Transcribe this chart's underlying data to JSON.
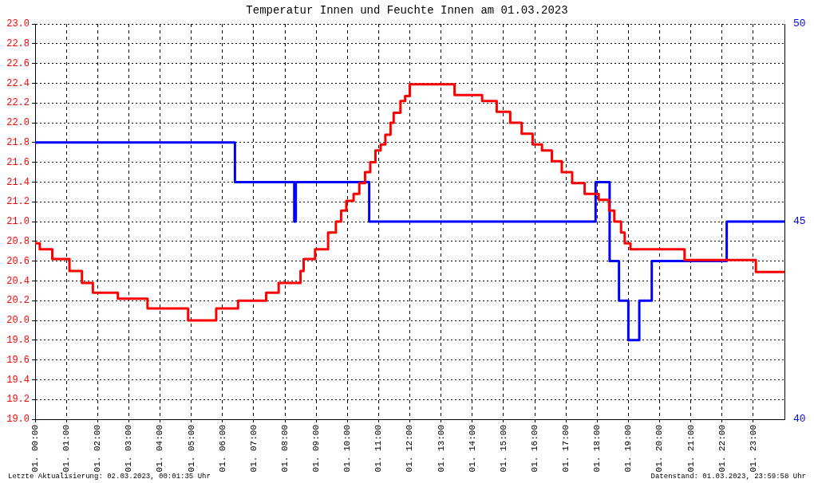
{
  "chart_data": {
    "type": "step",
    "title": "Temperatur Innen und Feuchte Innen am 01.03.2023",
    "xlim": [
      "2023-03-01T00:00",
      "2023-03-02T00:00"
    ],
    "xticks": [
      {
        "value": "2023-03-01T00:00",
        "label": "01. 00:00"
      },
      {
        "value": "2023-03-01T01:00",
        "label": "01. 01:00"
      },
      {
        "value": "2023-03-01T02:00",
        "label": "01. 02:00"
      },
      {
        "value": "2023-03-01T03:00",
        "label": "01. 03:00"
      },
      {
        "value": "2023-03-01T04:00",
        "label": "01. 04:00"
      },
      {
        "value": "2023-03-01T05:00",
        "label": "01. 05:00"
      },
      {
        "value": "2023-03-01T06:00",
        "label": "01. 06:00"
      },
      {
        "value": "2023-03-01T07:00",
        "label": "01. 07:00"
      },
      {
        "value": "2023-03-01T08:00",
        "label": "01. 08:00"
      },
      {
        "value": "2023-03-01T09:00",
        "label": "01. 09:00"
      },
      {
        "value": "2023-03-01T10:00",
        "label": "01. 10:00"
      },
      {
        "value": "2023-03-01T11:00",
        "label": "01. 11:00"
      },
      {
        "value": "2023-03-01T12:00",
        "label": "01. 12:00"
      },
      {
        "value": "2023-03-01T13:00",
        "label": "01. 13:00"
      },
      {
        "value": "2023-03-01T14:00",
        "label": "01. 14:00"
      },
      {
        "value": "2023-03-01T15:00",
        "label": "01. 15:00"
      },
      {
        "value": "2023-03-01T16:00",
        "label": "01. 16:00"
      },
      {
        "value": "2023-03-01T17:00",
        "label": "01. 17:00"
      },
      {
        "value": "2023-03-01T18:00",
        "label": "01. 18:00"
      },
      {
        "value": "2023-03-01T19:00",
        "label": "01. 19:00"
      },
      {
        "value": "2023-03-01T20:00",
        "label": "01. 20:00"
      },
      {
        "value": "2023-03-01T21:00",
        "label": "01. 21:00"
      },
      {
        "value": "2023-03-01T22:00",
        "label": "01. 22:00"
      },
      {
        "value": "2023-03-01T23:00",
        "label": "01. 23:00"
      }
    ],
    "ylim": [
      19.0,
      23.0
    ],
    "yticks": [
      {
        "value": 19,
        "label": "19.0"
      },
      {
        "value": 19.2,
        "label": "19.2"
      },
      {
        "value": 19.4,
        "label": "19.4"
      },
      {
        "value": 19.6,
        "label": "19.6"
      },
      {
        "value": 19.8,
        "label": "19.8"
      },
      {
        "value": 20,
        "label": "20.0"
      },
      {
        "value": 20.2,
        "label": "20.2"
      },
      {
        "value": 20.4,
        "label": "20.4"
      },
      {
        "value": 20.6,
        "label": "20.6"
      },
      {
        "value": 20.8,
        "label": "20.8"
      },
      {
        "value": 21,
        "label": "21.0"
      },
      {
        "value": 21.2,
        "label": "21.2"
      },
      {
        "value": 21.4,
        "label": "21.4"
      },
      {
        "value": 21.6,
        "label": "21.6"
      },
      {
        "value": 21.8,
        "label": "21.8"
      },
      {
        "value": 22,
        "label": "22.0"
      },
      {
        "value": 22.2,
        "label": "22.2"
      },
      {
        "value": 22.4,
        "label": "22.4"
      },
      {
        "value": 22.6,
        "label": "22.6"
      },
      {
        "value": 22.8,
        "label": "22.8"
      },
      {
        "value": 23,
        "label": "23.0"
      }
    ],
    "y2lim": [
      40,
      50
    ],
    "y2ticks": [
      40,
      45,
      50
    ],
    "grid": true,
    "series": [
      {
        "color": "#ff0000",
        "x": [
          "2023-03-01T00:00",
          "2023-03-01T00:09",
          "2023-03-01T00:33",
          "2023-03-01T01:06",
          "2023-03-01T01:30",
          "2023-03-01T01:51",
          "2023-03-01T02:39",
          "2023-03-01T03:36",
          "2023-03-01T04:54",
          "2023-03-01T05:48",
          "2023-03-01T06:30",
          "2023-03-01T07:24",
          "2023-03-01T07:48",
          "2023-03-01T08:30",
          "2023-03-01T08:36",
          "2023-03-01T08:58",
          "2023-03-01T09:23",
          "2023-03-01T09:38",
          "2023-03-01T09:48",
          "2023-03-01T09:58",
          "2023-03-01T10:12",
          "2023-03-01T10:23",
          "2023-03-01T10:34",
          "2023-03-01T10:44",
          "2023-03-01T10:54",
          "2023-03-01T11:04",
          "2023-03-01T11:13",
          "2023-03-01T11:23",
          "2023-03-01T11:29",
          "2023-03-01T11:42",
          "2023-03-01T11:51",
          "2023-03-01T12:00",
          "2023-03-01T13:26",
          "2023-03-01T14:19",
          "2023-03-01T14:47",
          "2023-03-01T15:13",
          "2023-03-01T15:35",
          "2023-03-01T15:56",
          "2023-03-01T16:14",
          "2023-03-01T16:33",
          "2023-03-01T16:52",
          "2023-03-01T17:12",
          "2023-03-01T17:36",
          "2023-03-01T18:03",
          "2023-03-01T18:23",
          "2023-03-01T18:33",
          "2023-03-01T18:46",
          "2023-03-01T18:53",
          "2023-03-01T19:04",
          "2023-03-01T20:48",
          "2023-03-01T23:05",
          "2023-03-02T00:00"
        ],
        "values": [
          20.78,
          20.72,
          20.62,
          20.5,
          20.38,
          20.28,
          20.22,
          20.12,
          20.0,
          20.12,
          20.2,
          20.28,
          20.38,
          20.5,
          20.62,
          20.72,
          20.89,
          21.0,
          21.11,
          21.21,
          21.28,
          21.39,
          21.5,
          21.6,
          21.72,
          21.78,
          21.88,
          22.0,
          22.1,
          22.22,
          22.27,
          22.39,
          22.28,
          22.22,
          22.11,
          22.0,
          21.89,
          21.78,
          21.72,
          21.61,
          21.5,
          21.39,
          21.28,
          21.22,
          21.11,
          21.0,
          20.89,
          20.78,
          20.72,
          20.61,
          20.49,
          20.49
        ]
      },
      {
        "color": "#0000ff",
        "axis": "y2",
        "x": [
          "2023-03-01T00:00",
          "2023-03-01T06:24",
          "2023-03-01T08:18",
          "2023-03-01T08:21",
          "2023-03-01T10:42",
          "2023-03-01T17:57",
          "2023-03-01T18:24",
          "2023-03-01T18:42",
          "2023-03-01T19:00",
          "2023-03-01T19:21",
          "2023-03-01T19:45",
          "2023-03-01T22:09",
          "2023-03-02T00:00"
        ],
        "values": [
          47,
          46,
          45,
          46,
          45,
          46,
          44,
          43,
          42,
          43,
          44,
          45,
          45
        ]
      }
    ],
    "annotations": [
      "Letzte Aktualisierung: 02.03.2023, 00:01:35 Uhr",
      "Datenstand: 01.03.2023, 23:59:58 Uhr"
    ]
  }
}
